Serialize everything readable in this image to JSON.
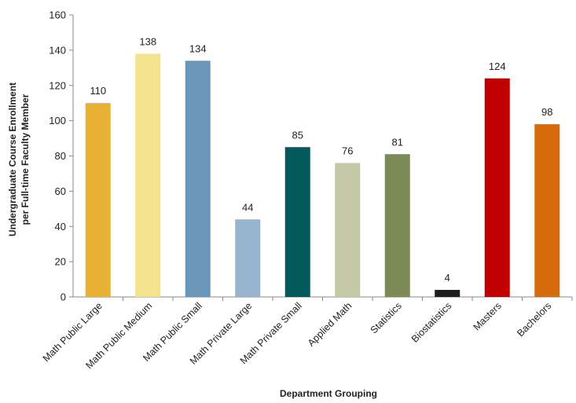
{
  "chart_data": {
    "type": "bar",
    "xlabel": "Department Grouping",
    "ylabel_lines": [
      "Undergraduate Course Enrollment",
      "per Full-time Faculty Member"
    ],
    "ylim": [
      0,
      160
    ],
    "yticks": [
      0,
      20,
      40,
      60,
      80,
      100,
      120,
      140,
      160
    ],
    "grid": false,
    "legend": "none",
    "categories": [
      "Math Public Large",
      "Math Public Medium",
      "Math Public Small",
      "Math Private Large",
      "Math Private Small",
      "Applied Math",
      "Statistics",
      "Biostatistics",
      "Masters",
      "Bachelors"
    ],
    "values": [
      110,
      138,
      134,
      44,
      85,
      76,
      81,
      4,
      124,
      98
    ],
    "data_labels": [
      "110",
      "138",
      "134",
      "44",
      "85",
      "76",
      "81",
      "4",
      "124",
      "98"
    ],
    "colors": [
      "#E8B133",
      "#F4E38D",
      "#6A96B8",
      "#97B4CF",
      "#045A5A",
      "#C5C8A4",
      "#7C8B56",
      "#1E1E1E",
      "#C00000",
      "#D56B0A"
    ]
  }
}
